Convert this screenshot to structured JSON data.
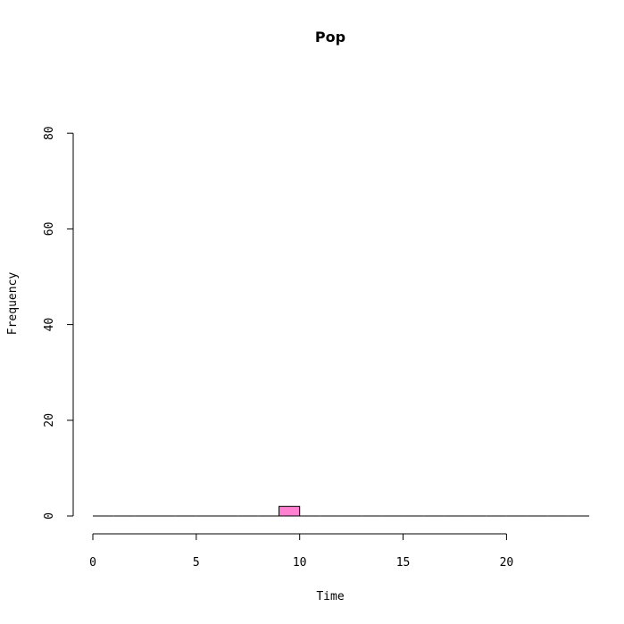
{
  "chart_data": {
    "type": "bar",
    "title": "Pop",
    "xlabel": "Time",
    "ylabel": "Frequency",
    "xlim": [
      0,
      24
    ],
    "ylim": [
      0,
      80
    ],
    "x_ticks": [
      0,
      5,
      10,
      15,
      20
    ],
    "y_ticks": [
      0,
      20,
      40,
      60,
      80
    ],
    "bins": [
      {
        "x0": 0,
        "x1": 1,
        "count": 0
      },
      {
        "x0": 1,
        "x1": 2,
        "count": 0
      },
      {
        "x0": 2,
        "x1": 3,
        "count": 0
      },
      {
        "x0": 3,
        "x1": 4,
        "count": 0
      },
      {
        "x0": 4,
        "x1": 5,
        "count": 0
      },
      {
        "x0": 5,
        "x1": 6,
        "count": 0
      },
      {
        "x0": 6,
        "x1": 7,
        "count": 0
      },
      {
        "x0": 7,
        "x1": 8,
        "count": 0
      },
      {
        "x0": 8,
        "x1": 9,
        "count": 0
      },
      {
        "x0": 9,
        "x1": 10,
        "count": 2
      },
      {
        "x0": 10,
        "x1": 11,
        "count": 0
      },
      {
        "x0": 11,
        "x1": 12,
        "count": 0
      },
      {
        "x0": 12,
        "x1": 13,
        "count": 0
      },
      {
        "x0": 13,
        "x1": 14,
        "count": 0
      },
      {
        "x0": 14,
        "x1": 15,
        "count": 0
      },
      {
        "x0": 15,
        "x1": 16,
        "count": 0
      },
      {
        "x0": 16,
        "x1": 17,
        "count": 0
      },
      {
        "x0": 17,
        "x1": 18,
        "count": 0
      },
      {
        "x0": 18,
        "x1": 19,
        "count": 0
      },
      {
        "x0": 19,
        "x1": 20,
        "count": 0
      },
      {
        "x0": 20,
        "x1": 21,
        "count": 0
      },
      {
        "x0": 21,
        "x1": 22,
        "count": 0
      },
      {
        "x0": 22,
        "x1": 23,
        "count": 0
      },
      {
        "x0": 23,
        "x1": 24,
        "count": 0
      }
    ],
    "bar_color": "#ff80d0",
    "grid": false,
    "legend": "none"
  }
}
